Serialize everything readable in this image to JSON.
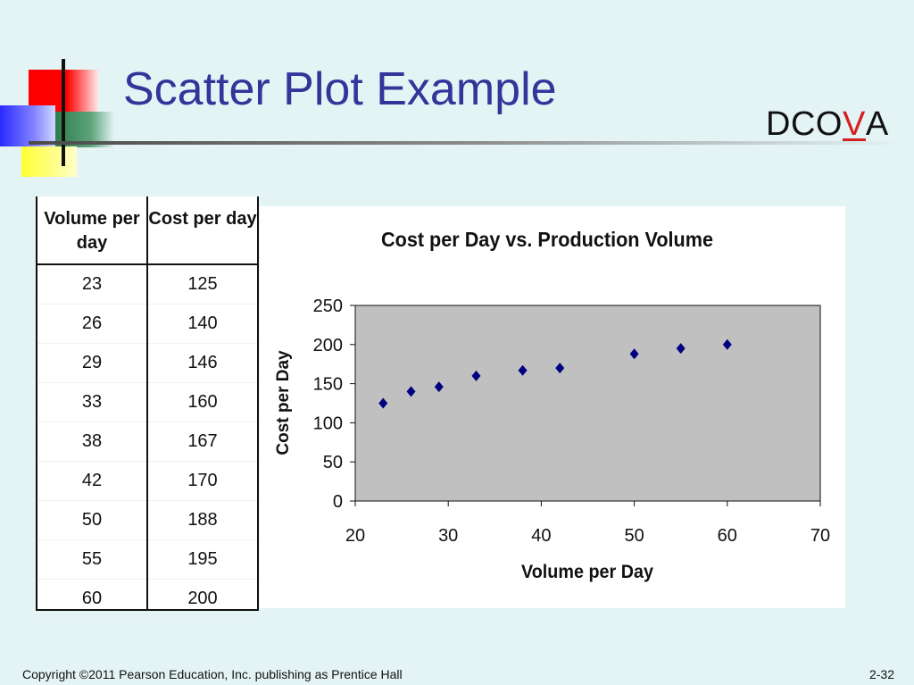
{
  "slide": {
    "title": "Scatter Plot Example",
    "tag_prefix": "DCO",
    "tag_highlight": "V",
    "tag_suffix": "A",
    "footer_copyright": "Copyright ©2011 Pearson Education, Inc. publishing as Prentice Hall",
    "page_number": "2-32"
  },
  "table": {
    "headers": [
      "Volume per day",
      "Cost per day"
    ],
    "rows": [
      [
        "23",
        "125"
      ],
      [
        "26",
        "140"
      ],
      [
        "29",
        "146"
      ],
      [
        "33",
        "160"
      ],
      [
        "38",
        "167"
      ],
      [
        "42",
        "170"
      ],
      [
        "50",
        "188"
      ],
      [
        "55",
        "195"
      ],
      [
        "60",
        "200"
      ]
    ]
  },
  "colors": {
    "title": "#34349a",
    "plot_area": "#c0c0c0",
    "marker": "#000080",
    "highlight": "#d42020"
  },
  "chart_data": {
    "type": "scatter",
    "title": "Cost per Day vs. Production Volume",
    "xlabel": "Volume per Day",
    "ylabel": "Cost per Day",
    "xlim": [
      20,
      70
    ],
    "ylim": [
      0,
      250
    ],
    "x_ticks": [
      20,
      30,
      40,
      50,
      60,
      70
    ],
    "y_ticks": [
      0,
      50,
      100,
      150,
      200,
      250
    ],
    "grid": false,
    "marker": "diamond",
    "x": [
      23,
      26,
      29,
      33,
      38,
      42,
      50,
      55,
      60
    ],
    "y": [
      125,
      140,
      146,
      160,
      167,
      170,
      188,
      195,
      200
    ]
  }
}
